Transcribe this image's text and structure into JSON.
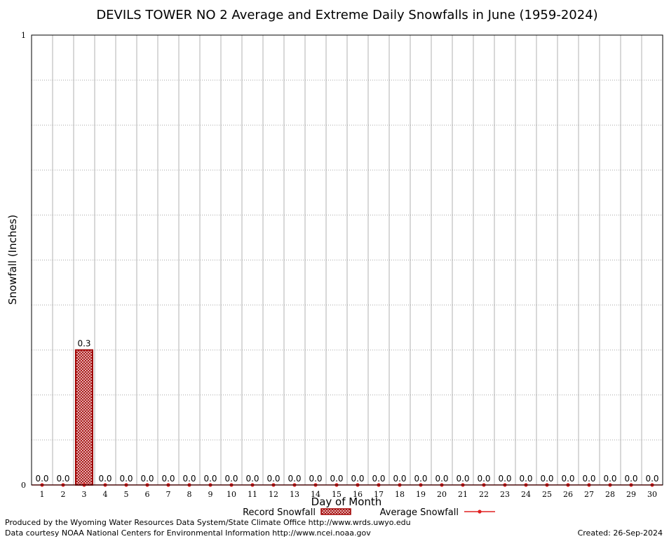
{
  "chart_data": {
    "type": "bar",
    "title": "DEVILS TOWER NO 2 Average and Extreme Daily Snowfalls in June (1959-2024)",
    "xlabel": "Day of Month",
    "ylabel": "Snowfall (Inches)",
    "ylim": [
      0,
      1
    ],
    "y_tick_labels": [
      "0",
      "1"
    ],
    "grid": true,
    "categories": [
      "1",
      "2",
      "3",
      "4",
      "5",
      "6",
      "7",
      "8",
      "9",
      "10",
      "11",
      "12",
      "13",
      "14",
      "15",
      "16",
      "17",
      "18",
      "19",
      "20",
      "21",
      "22",
      "23",
      "24",
      "25",
      "26",
      "27",
      "28",
      "29",
      "30"
    ],
    "series": [
      {
        "name": "Record Snowfall",
        "type": "bar",
        "values": [
          0.0,
          0.0,
          0.3,
          0.0,
          0.0,
          0.0,
          0.0,
          0.0,
          0.0,
          0.0,
          0.0,
          0.0,
          0.0,
          0.0,
          0.0,
          0.0,
          0.0,
          0.0,
          0.0,
          0.0,
          0.0,
          0.0,
          0.0,
          0.0,
          0.0,
          0.0,
          0.0,
          0.0,
          0.0,
          0.0
        ],
        "labels": [
          "0.0",
          "0.0",
          "0.3",
          "0.0",
          "0.0",
          "0.0",
          "0.0",
          "0.0",
          "0.0",
          "0.0",
          "0.0",
          "0.0",
          "0.0",
          "0.0",
          "0.0",
          "0.0",
          "0.0",
          "0.0",
          "0.0",
          "0.0",
          "0.0",
          "0.0",
          "0.0",
          "0.0",
          "0.0",
          "0.0",
          "0.0",
          "0.0",
          "0.0",
          "0.0"
        ],
        "color": "#a00000"
      },
      {
        "name": "Average Snowfall",
        "type": "line",
        "values": [
          0,
          0,
          0,
          0,
          0,
          0,
          0,
          0,
          0,
          0,
          0,
          0,
          0,
          0,
          0,
          0,
          0,
          0,
          0,
          0,
          0,
          0,
          0,
          0,
          0,
          0,
          0,
          0,
          0,
          0
        ],
        "color": "#e02020"
      }
    ],
    "legend_placement": "bottom-center"
  },
  "footer": {
    "produced_by": "Produced by the Wyoming Water Resources Data System/State Climate Office http://www.wrds.uwyo.edu",
    "data_courtesy": "Data courtesy NOAA National Centers for Environmental Information http://www.ncei.noaa.gov",
    "created": "Created: 26-Sep-2024"
  }
}
